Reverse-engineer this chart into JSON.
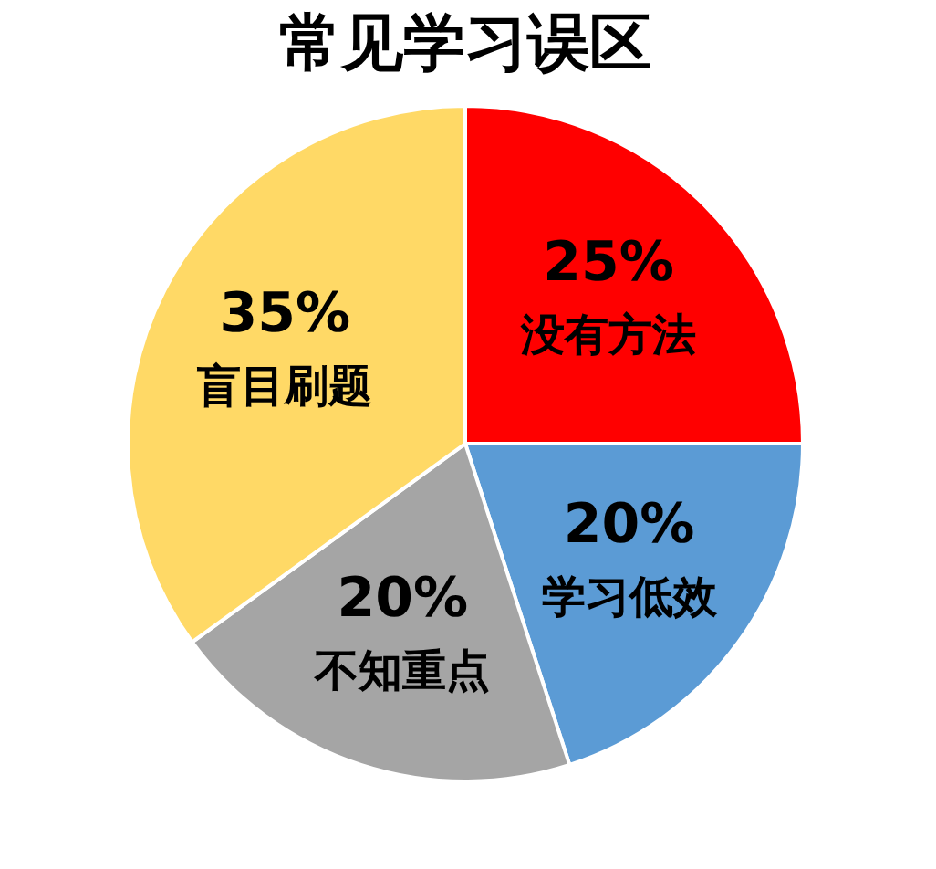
{
  "chart_data": {
    "type": "pie",
    "title": "常见学习误区",
    "categories": [
      "没有方法",
      "学习低效",
      "不知重点",
      "盲目刷题"
    ],
    "values": [
      25,
      20,
      20,
      35
    ],
    "colors": [
      "#ff0000",
      "#5b9bd5",
      "#a5a5a5",
      "#ffd966"
    ],
    "value_labels": [
      "25%",
      "20%",
      "20%",
      "35%"
    ],
    "legend": false
  }
}
